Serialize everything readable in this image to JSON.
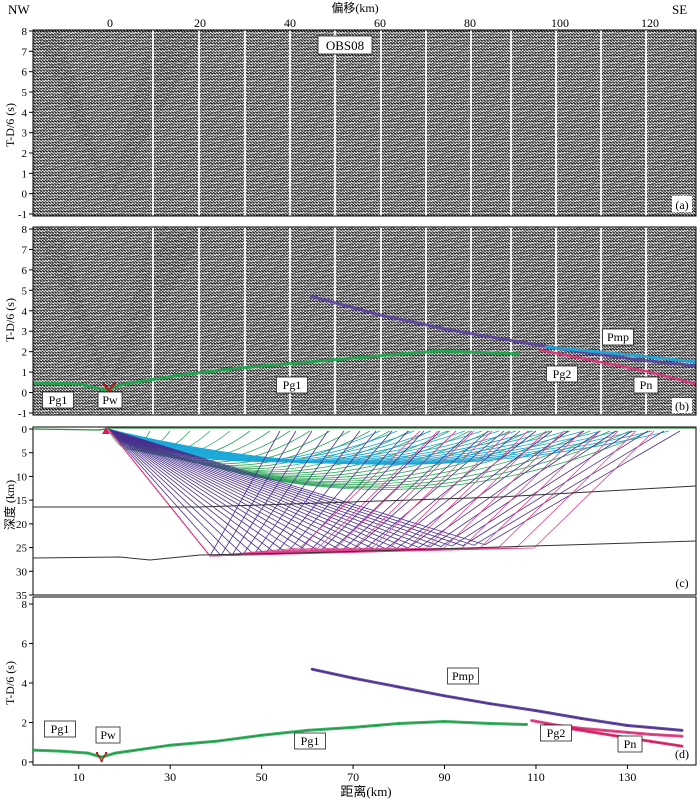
{
  "top": {
    "left_label": "NW",
    "right_label": "SE",
    "axis_title": "偏移(km)",
    "ticks": [
      {
        "text": "0",
        "value": 0
      },
      {
        "text": "20",
        "value": 20
      },
      {
        "text": "40",
        "value": 40
      },
      {
        "text": "60",
        "value": 60
      },
      {
        "text": "80",
        "value": 80
      },
      {
        "text": "100",
        "value": 100
      },
      {
        "text": "120",
        "value": 120
      }
    ]
  },
  "panel_a": {
    "tag": "(a)",
    "station_label": "OBS08",
    "ylabel": "T-D/6 (s)",
    "yticks": [
      "8",
      "7",
      "6",
      "5",
      "4",
      "3",
      "2",
      "1",
      "0",
      "-1"
    ]
  },
  "panel_b": {
    "tag": "(b)",
    "ylabel": "T-D/6 (s)",
    "yticks": [
      "8",
      "7",
      "6",
      "5",
      "4",
      "3",
      "2",
      "1",
      "0",
      "-1"
    ],
    "phases": [
      "Pg1",
      "Pw",
      "Pg1",
      "Pg2",
      "Pmp",
      "Pn"
    ]
  },
  "panel_c": {
    "tag": "(c)",
    "ylabel": "深度 (km)",
    "yticks": [
      "0",
      "5",
      "10",
      "15",
      "20",
      "25",
      "30",
      "35"
    ]
  },
  "panel_d": {
    "tag": "(d)",
    "ylabel": "T-D/6 (s)",
    "yticks": [
      "8",
      "6",
      "4",
      "2",
      "0"
    ],
    "xlabel": "距离(km)",
    "xticks": [
      "10",
      "30",
      "50",
      "70",
      "90",
      "110",
      "130"
    ],
    "phases": [
      "Pg1",
      "Pw",
      "Pg1",
      "Pmp",
      "Pg2",
      "Pn"
    ]
  },
  "colors": {
    "Pg1": "#1aa64a",
    "Pg2": "#e0307a",
    "Pmp": "#4b2f95",
    "Pn": "#d81b60",
    "Pw": "#c01010",
    "cyan": "#1ba9d9",
    "green_rays": "#30a85a",
    "purple_rays": "#4a2f8f",
    "pink_rays": "#e0408a"
  },
  "chart_data": {
    "type": "line",
    "title": "",
    "xlabel": "距离(km)",
    "ylabel": "T-D/6 (s)",
    "xlim": [
      0,
      145
    ],
    "ylim": [
      0,
      8.5
    ],
    "series": [
      {
        "name": "Pg1",
        "x": [
          0,
          6,
          12,
          15,
          18,
          24,
          30,
          40,
          50,
          60,
          70,
          80,
          90,
          100,
          108
        ],
        "y": [
          0.6,
          0.55,
          0.45,
          0.25,
          0.45,
          0.65,
          0.85,
          1.05,
          1.35,
          1.6,
          1.75,
          1.95,
          2.05,
          1.95,
          1.9
        ]
      },
      {
        "name": "Pw",
        "x": [
          14,
          15,
          16
        ],
        "y": [
          0.45,
          0.05,
          0.45
        ]
      },
      {
        "name": "Pmp",
        "x": [
          61,
          70,
          80,
          90,
          100,
          110,
          120,
          130,
          142
        ],
        "y": [
          4.7,
          4.25,
          3.8,
          3.35,
          2.95,
          2.6,
          2.2,
          1.85,
          1.6
        ]
      },
      {
        "name": "Pg2",
        "x": [
          109,
          115,
          120,
          125,
          130,
          135,
          142
        ],
        "y": [
          2.1,
          1.85,
          1.7,
          1.6,
          1.5,
          1.4,
          1.3
        ]
      },
      {
        "name": "Pn",
        "x": [
          112,
          120,
          128,
          135,
          142
        ],
        "y": [
          1.9,
          1.6,
          1.3,
          1.05,
          0.8
        ]
      }
    ]
  }
}
